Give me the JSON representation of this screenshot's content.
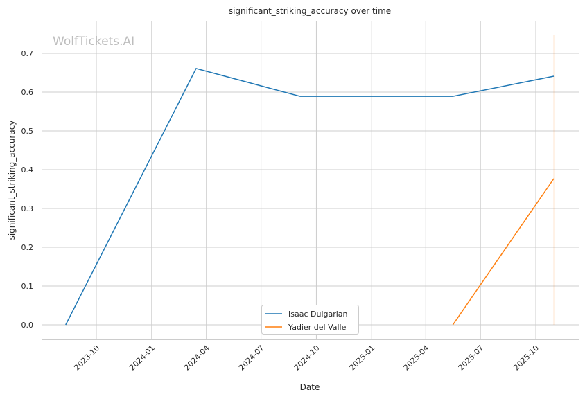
{
  "watermark": "WolfTickets.AI",
  "chart_data": {
    "type": "line",
    "title": "significant_striking_accuracy over time",
    "xlabel": "Date",
    "ylabel": "significant_striking_accuracy",
    "xlim": [
      "2023-07-20",
      "2025-11-25"
    ],
    "ylim": [
      -0.038,
      0.785
    ],
    "x_ticks": [
      "2023-10",
      "2024-01",
      "2024-04",
      "2024-07",
      "2024-10",
      "2025-01",
      "2025-04",
      "2025-07",
      "2025-10"
    ],
    "y_ticks": [
      "0.0",
      "0.1",
      "0.2",
      "0.3",
      "0.4",
      "0.5",
      "0.6",
      "0.7"
    ],
    "grid": true,
    "legend_position": "bottom-center",
    "series": [
      {
        "name": "Isaac Dulgarian",
        "color": "#1f77b4",
        "x": [
          "2023-08-11",
          "2024-03-15",
          "2024-09-04",
          "2025-05-16",
          "2025-10-31"
        ],
        "y": [
          0.0,
          0.661,
          0.589,
          0.589,
          0.641
        ]
      },
      {
        "name": "Yadier del Valle",
        "color": "#ff7f0e",
        "x": [
          "2025-05-16",
          "2025-10-31"
        ],
        "y": [
          0.0,
          0.377
        ]
      }
    ],
    "annotations": [
      {
        "type": "vline",
        "x": "2025-10-31",
        "color": "#ff7f0e"
      }
    ]
  }
}
